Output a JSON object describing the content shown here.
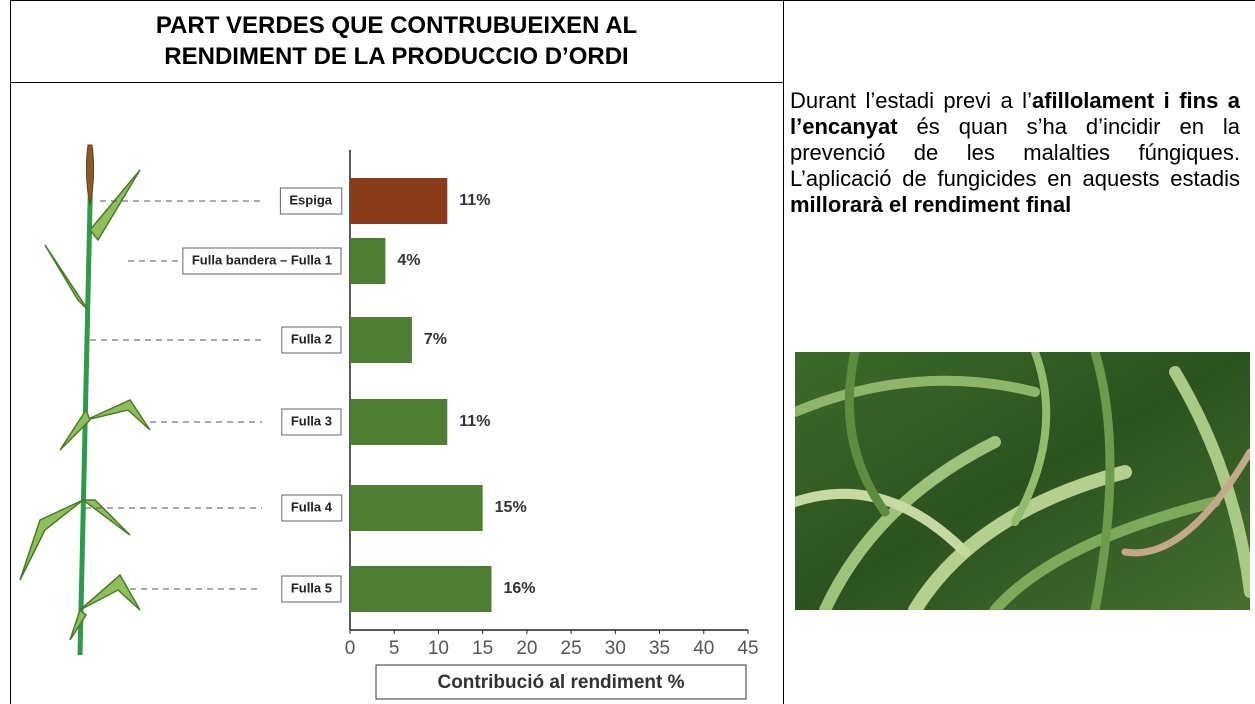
{
  "header": {
    "title_lines": [
      "PART VERDES QUE CONTRUBUEIXEN AL",
      "RENDIMENT DE LA PRODUCCIO D’ORDI"
    ]
  },
  "chart_data": {
    "type": "barh",
    "categories": [
      "Espiga",
      "Fulla bandera – Fulla 1",
      "Fulla 2",
      "Fulla 3",
      "Fulla 4",
      "Fulla 5"
    ],
    "values": [
      11,
      4,
      7,
      11,
      15,
      16
    ],
    "value_labels": [
      "11%",
      "4%",
      "7%",
      "11%",
      "15%",
      "16%"
    ],
    "colors": [
      "#8a3b1b",
      "#4f7d33",
      "#4f7d33",
      "#4f7d33",
      "#4f7d33",
      "#4f7d33"
    ],
    "xlim": [
      0,
      45
    ],
    "xticks": [
      0,
      5,
      10,
      15,
      20,
      25,
      30,
      35,
      40,
      45
    ],
    "xlabel": "Contribució al rendiment %",
    "grid": false
  },
  "paragraph": [
    "Durant l’estadi previ a l’",
    "afillolament i fins a l’encanyat",
    " és quan s’ha d’incidir en la prevenció de les malalties fúngiques. L’aplicació de fungicides en aquests estadis ",
    "millorarà el rendiment final"
  ]
}
